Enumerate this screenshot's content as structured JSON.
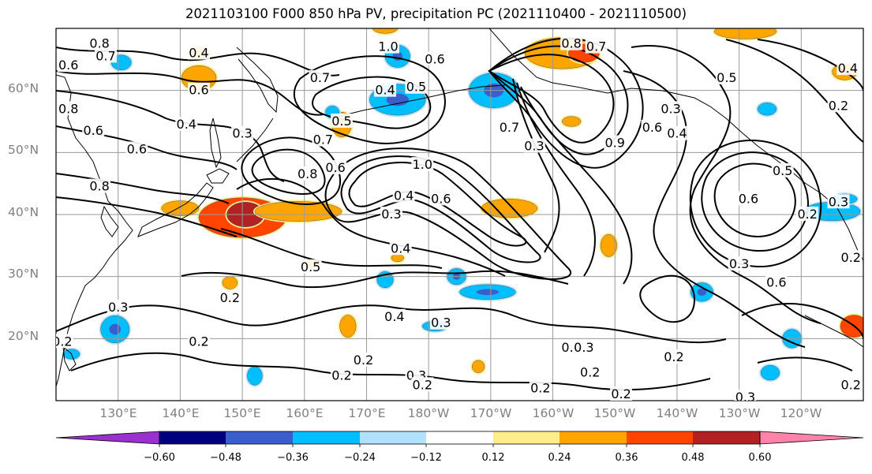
{
  "title": "2021103100 F000 850 hPa PV, precipitation PC (2021110400 - 2021110500)",
  "lat_labels": [
    "60°N",
    "50°N",
    "40°N",
    "30°N",
    "20°N"
  ],
  "lon_labels": [
    "130°E",
    "140°E",
    "150°E",
    "160°E",
    "170°E",
    "180°W",
    "170°W",
    "160°W",
    "150°W",
    "140°W",
    "130°W",
    "120°W"
  ],
  "colorbar": {
    "ticks": [
      "−0.60",
      "−0.48",
      "−0.36",
      "−0.24",
      "−0.12",
      "0.12",
      "0.24",
      "0.36",
      "0.48",
      "0.60"
    ],
    "colors": [
      "#9b30d0",
      "#00007f",
      "#3a5fcd",
      "#00bfff",
      "#b0e2ff",
      "#ffffff",
      "#ffec8b",
      "#ffa500",
      "#ff4500",
      "#b22222",
      "#ff82ab"
    ]
  },
  "contour_labels": [
    {
      "text": "0.8",
      "lon": 127,
      "lat": 67.5
    },
    {
      "text": "0.7",
      "lon": 128,
      "lat": 65.5
    },
    {
      "text": "0.6",
      "lon": 122,
      "lat": 64
    },
    {
      "text": "0.4",
      "lon": 143,
      "lat": 66
    },
    {
      "text": "0.6",
      "lon": 143,
      "lat": 60
    },
    {
      "text": "0.4",
      "lon": 141,
      "lat": 54.5
    },
    {
      "text": "0.3",
      "lon": 150,
      "lat": 53
    },
    {
      "text": "0.8",
      "lon": 122,
      "lat": 57
    },
    {
      "text": "0.6",
      "lon": 126,
      "lat": 53.5
    },
    {
      "text": "0.6",
      "lon": 133,
      "lat": 50.5
    },
    {
      "text": "0.8",
      "lon": 127,
      "lat": 44.5
    },
    {
      "text": "0.7",
      "lon": 163,
      "lat": 52
    },
    {
      "text": "0.5",
      "lon": 166,
      "lat": 55
    },
    {
      "text": "0.8",
      "lon": 160.5,
      "lat": 46.5
    },
    {
      "text": "0.6",
      "lon": 165,
      "lat": 47.5
    },
    {
      "text": "1.0",
      "lon": 173.5,
      "lat": 67
    },
    {
      "text": "0.7",
      "lon": 162.5,
      "lat": 62
    },
    {
      "text": "0.4",
      "lon": 173,
      "lat": 60
    },
    {
      "text": "0.5",
      "lon": 178,
      "lat": 60.5
    },
    {
      "text": "0.6",
      "lon": 181,
      "lat": 65
    },
    {
      "text": "1.0",
      "lon": 179,
      "lat": 48
    },
    {
      "text": "0.4",
      "lon": 176,
      "lat": 43
    },
    {
      "text": "0.3",
      "lon": 174,
      "lat": 40
    },
    {
      "text": "0.6",
      "lon": 182,
      "lat": 42.5
    },
    {
      "text": "0.4",
      "lon": 175.5,
      "lat": 34.5
    },
    {
      "text": "0.5",
      "lon": 161,
      "lat": 31.5
    },
    {
      "text": "0.2",
      "lon": 148,
      "lat": 26.5
    },
    {
      "text": "0.4",
      "lon": 174.5,
      "lat": 23.5
    },
    {
      "text": "0.3",
      "lon": 182,
      "lat": 22.5
    },
    {
      "text": "0.2",
      "lon": 169.5,
      "lat": 16.5
    },
    {
      "text": "0.2",
      "lon": 166,
      "lat": 14
    },
    {
      "text": "0.3",
      "lon": 178,
      "lat": 14
    },
    {
      "text": "0.2",
      "lon": 179,
      "lat": 12.5
    },
    {
      "text": "0.3",
      "lon": 130,
      "lat": 25
    },
    {
      "text": "0.2",
      "lon": 143,
      "lat": 19.5
    },
    {
      "text": "0.2",
      "lon": 121,
      "lat": 19.5
    },
    {
      "text": "0.2",
      "lon": 198,
      "lat": 12
    },
    {
      "text": "0.4",
      "lon": 203,
      "lat": 18.5
    },
    {
      "text": "0.3",
      "lon": 205,
      "lat": 18.5
    },
    {
      "text": "0.2",
      "lon": 206,
      "lat": 14.5
    },
    {
      "text": "0.2",
      "lon": 211,
      "lat": 11
    },
    {
      "text": "0.2",
      "lon": 219.5,
      "lat": 17
    },
    {
      "text": "0.3",
      "lon": 231,
      "lat": 10.5
    },
    {
      "text": "0.8",
      "lon": 203,
      "lat": 67.5
    },
    {
      "text": "0.7",
      "lon": 207,
      "lat": 67
    },
    {
      "text": "0.5",
      "lon": 228,
      "lat": 62
    },
    {
      "text": "0.4",
      "lon": 247.5,
      "lat": 63.5
    },
    {
      "text": "0.2",
      "lon": 246,
      "lat": 57.5
    },
    {
      "text": "0.3",
      "lon": 219,
      "lat": 57
    },
    {
      "text": "0.6",
      "lon": 216,
      "lat": 54
    },
    {
      "text": "0.4",
      "lon": 220,
      "lat": 53
    },
    {
      "text": "0.7",
      "lon": 193,
      "lat": 54
    },
    {
      "text": "0.3",
      "lon": 197,
      "lat": 51
    },
    {
      "text": "0.9",
      "lon": 210,
      "lat": 51.5
    },
    {
      "text": "0.5",
      "lon": 237,
      "lat": 47
    },
    {
      "text": "0.3",
      "lon": 246,
      "lat": 42
    },
    {
      "text": "0.6",
      "lon": 231.5,
      "lat": 42.5
    },
    {
      "text": "0.3",
      "lon": 230,
      "lat": 32
    },
    {
      "text": "0.6",
      "lon": 236,
      "lat": 29
    },
    {
      "text": "0.2",
      "lon": 248,
      "lat": 33
    },
    {
      "text": "0.2",
      "lon": 248,
      "lat": 12.5
    },
    {
      "text": "0.2",
      "lon": 241,
      "lat": 40
    }
  ],
  "positive_patches": [
    {
      "lon": 150,
      "lat": 39.5,
      "rx": 7,
      "ry": 3.2,
      "level": 2
    },
    {
      "lon": 150.5,
      "lat": 40,
      "rx": 3,
      "ry": 2,
      "level": 3
    },
    {
      "lon": 159,
      "lat": 40.5,
      "rx": 7,
      "ry": 1.6,
      "level": 1
    },
    {
      "lon": 140,
      "lat": 41,
      "rx": 3,
      "ry": 1.2,
      "level": 1
    },
    {
      "lon": 143,
      "lat": 62,
      "rx": 2.8,
      "ry": 2,
      "level": 1
    },
    {
      "lon": 143,
      "lat": 66,
      "rx": 1.6,
      "ry": 1,
      "level": 1
    },
    {
      "lon": 166,
      "lat": 54.5,
      "rx": 1.6,
      "ry": 2,
      "level": 1
    },
    {
      "lon": 201.5,
      "lat": 66,
      "rx": 6,
      "ry": 2.5,
      "level": 1
    },
    {
      "lon": 205,
      "lat": 66,
      "rx": 2.5,
      "ry": 1.5,
      "level": 2
    },
    {
      "lon": 231,
      "lat": 69.5,
      "rx": 5,
      "ry": 1.2,
      "level": 1
    },
    {
      "lon": 247,
      "lat": 63,
      "rx": 2,
      "ry": 1.3,
      "level": 1
    },
    {
      "lon": 193,
      "lat": 41,
      "rx": 4.5,
      "ry": 1.5,
      "level": 1
    },
    {
      "lon": 209,
      "lat": 35,
      "rx": 1.3,
      "ry": 1.8,
      "level": 1
    },
    {
      "lon": 248.5,
      "lat": 22,
      "rx": 2.2,
      "ry": 1.8,
      "level": 2
    },
    {
      "lon": 148,
      "lat": 29,
      "rx": 1.2,
      "ry": 1,
      "level": 1
    },
    {
      "lon": 167,
      "lat": 22,
      "rx": 1.3,
      "ry": 1.8,
      "level": 1
    },
    {
      "lon": 161,
      "lat": 32,
      "rx": 1.5,
      "ry": 0.6,
      "level": 1
    },
    {
      "lon": 173,
      "lat": 70,
      "rx": 2,
      "ry": 0.8,
      "level": 1
    },
    {
      "lon": 203,
      "lat": 55,
      "rx": 1.5,
      "ry": 0.8,
      "level": 1
    },
    {
      "lon": 175,
      "lat": 33,
      "rx": 1,
      "ry": 0.6,
      "level": 1
    },
    {
      "lon": 188,
      "lat": 15.5,
      "rx": 1,
      "ry": 1,
      "level": 1
    }
  ],
  "negative_patches": [
    {
      "lon": 175,
      "lat": 58.5,
      "rx": 4.5,
      "ry": 2.5,
      "level": 2
    },
    {
      "lon": 175,
      "lat": 65.5,
      "rx": 2,
      "ry": 1.8,
      "level": 2
    },
    {
      "lon": 190.5,
      "lat": 60,
      "rx": 4,
      "ry": 2.8,
      "level": 2
    },
    {
      "lon": 189.5,
      "lat": 27.5,
      "rx": 4.5,
      "ry": 1.2,
      "level": 2
    },
    {
      "lon": 184.5,
      "lat": 30,
      "rx": 1.5,
      "ry": 1.3,
      "level": 2
    },
    {
      "lon": 173,
      "lat": 29.5,
      "rx": 1.3,
      "ry": 1.3,
      "level": 1
    },
    {
      "lon": 181,
      "lat": 22,
      "rx": 2,
      "ry": 0.8,
      "level": 1
    },
    {
      "lon": 224,
      "lat": 27.5,
      "rx": 1.8,
      "ry": 1.5,
      "level": 2
    },
    {
      "lon": 129.5,
      "lat": 21.5,
      "rx": 2.3,
      "ry": 2.2,
      "level": 2
    },
    {
      "lon": 122.5,
      "lat": 17.5,
      "rx": 1.3,
      "ry": 0.8,
      "level": 1
    },
    {
      "lon": 164.5,
      "lat": 56.5,
      "rx": 1.1,
      "ry": 1,
      "level": 1
    },
    {
      "lon": 130.5,
      "lat": 64.5,
      "rx": 1.6,
      "ry": 1.2,
      "level": 1
    },
    {
      "lon": 245,
      "lat": 40.5,
      "rx": 4.5,
      "ry": 1.5,
      "level": 1
    },
    {
      "lon": 247,
      "lat": 42.5,
      "rx": 2,
      "ry": 0.8,
      "level": 2
    },
    {
      "lon": 234.5,
      "lat": 57,
      "rx": 1.5,
      "ry": 1,
      "level": 1
    },
    {
      "lon": 238.5,
      "lat": 20,
      "rx": 1.5,
      "ry": 1.5,
      "level": 1
    },
    {
      "lon": 235,
      "lat": 14.5,
      "rx": 1.5,
      "ry": 1.2,
      "level": 1
    },
    {
      "lon": 152,
      "lat": 14,
      "rx": 1.2,
      "ry": 1.5,
      "level": 1
    }
  ]
}
